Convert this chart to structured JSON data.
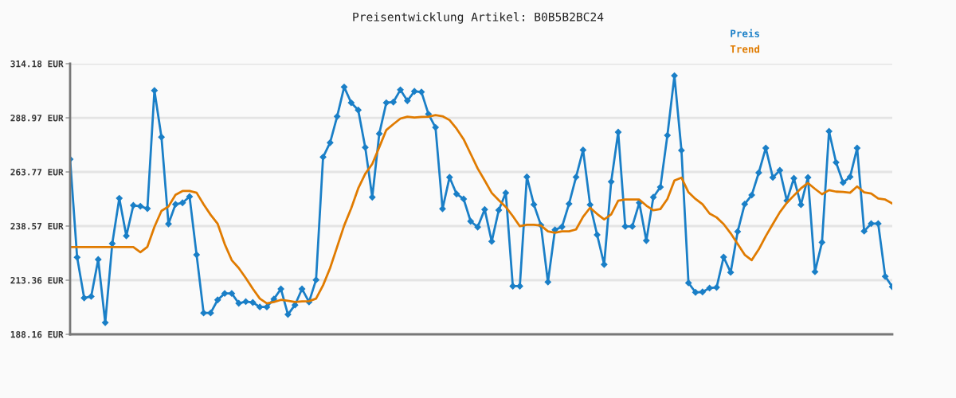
{
  "chart_data": {
    "type": "line",
    "title": "Preisentwicklung Artikel: B0B5B2BC24",
    "categories": [
      null,
      null,
      null,
      null,
      null,
      null,
      null,
      null,
      null,
      null,
      null,
      null,
      null,
      null,
      null,
      null,
      null,
      null,
      null,
      null,
      null,
      null,
      null,
      null,
      null,
      null,
      null,
      null,
      null,
      null,
      null,
      null,
      null,
      null,
      null,
      null,
      null,
      null,
      null,
      null,
      null,
      null,
      null,
      null,
      null,
      null,
      null,
      null,
      null,
      null,
      null,
      null,
      null,
      null,
      null,
      null,
      null,
      null,
      null,
      null,
      null,
      null,
      null,
      null,
      null,
      null,
      null,
      null,
      null,
      null,
      null,
      null,
      null,
      null,
      null,
      null,
      null,
      null,
      null,
      null,
      null,
      null,
      null,
      null,
      null,
      null,
      null,
      null,
      null,
      null,
      null,
      null,
      null,
      null,
      null,
      null,
      null,
      null,
      null,
      null,
      null,
      null,
      null,
      null,
      null,
      null,
      null,
      null,
      null,
      null,
      null,
      null,
      null,
      null,
      null,
      null,
      null,
      null
    ],
    "series": [
      {
        "name": "Preis",
        "color": "#1a7fc7",
        "marker": "diamond",
        "values": [
          269.7,
          224.0,
          205.1,
          205.8,
          223.0,
          193.6,
          230.4,
          251.5,
          234.0,
          248.2,
          247.8,
          246.7,
          301.7,
          280.0,
          239.6,
          248.7,
          249.4,
          252.3,
          225.2,
          198.1,
          198.1,
          204.2,
          207.2,
          207.2,
          202.6,
          203.4,
          203.0,
          200.9,
          200.9,
          204.6,
          209.3,
          197.4,
          201.8,
          209.3,
          203.2,
          213.5,
          270.7,
          277.4,
          289.6,
          303.3,
          296.0,
          292.6,
          275.2,
          252.0,
          281.6,
          296.0,
          296.3,
          302.0,
          296.9,
          301.3,
          301.0,
          290.7,
          284.5,
          246.6,
          261.3,
          253.5,
          251.2,
          240.8,
          238.1,
          246.3,
          231.4,
          246.0,
          254.0,
          210.6,
          210.6,
          261.5,
          248.6,
          239.0,
          212.5,
          236.8,
          238.2,
          248.9,
          261.4,
          274.0,
          248.5,
          234.5,
          220.7,
          259.2,
          282.3,
          238.4,
          238.4,
          249.4,
          231.8,
          252.0,
          256.7,
          280.8,
          308.6,
          273.8,
          212.1,
          207.7,
          207.9,
          209.7,
          210.0,
          224.1,
          217.0,
          236.0,
          248.8,
          253.0,
          263.4,
          274.9,
          261.2,
          264.5,
          250.4,
          260.8,
          248.5,
          261.2,
          217.3,
          231.0,
          282.7,
          268.2,
          258.8,
          261.5,
          274.9,
          236.2,
          239.7,
          239.7,
          215.1,
          210.3
        ]
      },
      {
        "name": "Trend",
        "color": "#e07b00",
        "marker": "none",
        "values": [
          228.8,
          228.8,
          228.8,
          228.8,
          228.8,
          228.8,
          228.8,
          228.8,
          228.8,
          228.8,
          226.4,
          228.9,
          238.2,
          245.6,
          247.7,
          253.1,
          254.9,
          254.9,
          254.1,
          248.7,
          243.8,
          239.6,
          230.2,
          222.7,
          219.0,
          214.4,
          209.4,
          204.8,
          202.6,
          203.2,
          204.2,
          203.8,
          203.2,
          203.5,
          203.6,
          204.8,
          211.0,
          219.0,
          228.9,
          238.8,
          246.8,
          256.1,
          262.9,
          267.5,
          275.3,
          283.3,
          286.0,
          288.6,
          289.5,
          289.1,
          289.4,
          289.5,
          290.2,
          289.7,
          287.9,
          283.9,
          279.0,
          272.2,
          265.4,
          259.8,
          254.0,
          250.6,
          247.5,
          243.2,
          238.5,
          239.2,
          239.2,
          238.8,
          236.1,
          235.5,
          236.1,
          236.1,
          237.0,
          242.9,
          247.1,
          244.2,
          241.7,
          244.0,
          250.4,
          250.9,
          250.9,
          250.9,
          248.1,
          245.9,
          246.5,
          251.2,
          259.8,
          261.1,
          254.3,
          251.2,
          248.7,
          244.4,
          242.6,
          239.5,
          235.2,
          230.2,
          225.2,
          222.7,
          227.7,
          233.9,
          239.5,
          245.0,
          249.4,
          252.8,
          256.1,
          258.6,
          255.9,
          253.4,
          255.3,
          254.6,
          254.5,
          254.1,
          257.0,
          254.3,
          253.7,
          251.4,
          250.9,
          249.1
        ]
      }
    ],
    "ylim": [
      188.16,
      314.18
    ],
    "yticks": [
      {
        "value": 188.16,
        "label": "188.16 EUR"
      },
      {
        "value": 213.36,
        "label": "213.36 EUR"
      },
      {
        "value": 238.57,
        "label": "238.57 EUR"
      },
      {
        "value": 263.77,
        "label": "263.77 EUR"
      },
      {
        "value": 288.97,
        "label": "288.97 EUR"
      },
      {
        "value": 314.18,
        "label": "314.18 EUR"
      }
    ],
    "grid": "y",
    "legend": "top right",
    "line_style": "solid"
  }
}
